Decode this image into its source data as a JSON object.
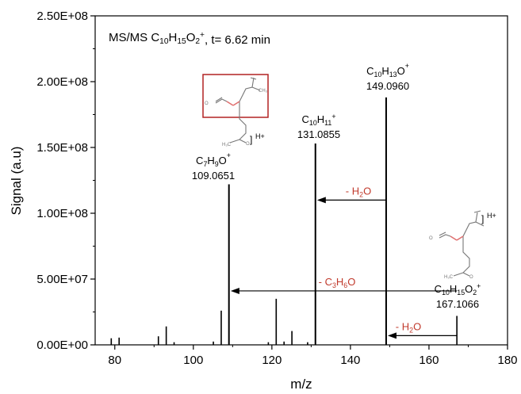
{
  "chart_data": {
    "type": "bar",
    "title": "MS/MS C10H15O2+, t= 6.62 min",
    "title_parts": {
      "prefix": "MS/MS C",
      "c": "10",
      "h": "H",
      "hn": "15",
      "o": "O",
      "on": "2",
      "charge": "+",
      "suffix": ", t= 6.62 min"
    },
    "xlabel": "m/z",
    "ylabel": "Signal (a.u)",
    "xlim": [
      75,
      180
    ],
    "ylim": [
      0,
      250000000
    ],
    "xticks": [
      80,
      100,
      120,
      140,
      160,
      180
    ],
    "yticks": [
      0,
      50000000,
      100000000,
      150000000,
      200000000,
      250000000
    ],
    "ytick_labels": [
      "0.00E+00",
      "5.00E+07",
      "1.00E+08",
      "1.50E+08",
      "2.00E+08",
      "2.50E+08"
    ],
    "peaks": [
      {
        "mz": 79.1,
        "value": 5000000
      },
      {
        "mz": 81.1,
        "value": 5500000
      },
      {
        "mz": 91.1,
        "value": 6500000
      },
      {
        "mz": 93.1,
        "value": 14000000
      },
      {
        "mz": 95.1,
        "value": 2000000
      },
      {
        "mz": 105.1,
        "value": 2500000
      },
      {
        "mz": 107.1,
        "value": 26000000
      },
      {
        "mz": 109.0651,
        "value": 122000000
      },
      {
        "mz": 119.1,
        "value": 2000000
      },
      {
        "mz": 121.1,
        "value": 35000000
      },
      {
        "mz": 123.1,
        "value": 2500000
      },
      {
        "mz": 125.1,
        "value": 10500000
      },
      {
        "mz": 129.1,
        "value": 2000000
      },
      {
        "mz": 131.0855,
        "value": 153000000
      },
      {
        "mz": 149.096,
        "value": 188000000
      },
      {
        "mz": 167.1066,
        "value": 22000000
      }
    ],
    "peak_labels": [
      {
        "formula": [
          "C",
          "7",
          "H",
          "9",
          "O",
          "+"
        ],
        "mass": "109.0651",
        "mz": 109.0651
      },
      {
        "formula": [
          "C",
          "10",
          "H",
          "11",
          "+"
        ],
        "mass": "131.0855",
        "mz": 131.0855
      },
      {
        "formula": [
          "C",
          "10",
          "H",
          "13",
          "O",
          "+"
        ],
        "mass": "149.0960",
        "mz": 149.096
      },
      {
        "formula": [
          "C",
          "10",
          "H",
          "15",
          "O",
          "2",
          "+"
        ],
        "mass": "167.1066",
        "mz": 167.1066
      }
    ],
    "annotations": [
      {
        "text_parts": [
          "- H",
          "2",
          "O"
        ],
        "from_mz": 149.1,
        "to_mz": 131.1,
        "at_value": 110000000,
        "color": "#c0392b"
      },
      {
        "text_parts": [
          "- C",
          "3",
          "H",
          "6",
          "O"
        ],
        "from_mz": 167.1,
        "to_mz": 109.1,
        "at_value": 41000000,
        "color": "#c0392b"
      },
      {
        "text_parts": [
          "- H",
          "2",
          "O"
        ],
        "from_mz": 167.1,
        "to_mz": 149.1,
        "at_value": 7000000,
        "color": "#c0392b"
      }
    ],
    "structure_labels": {
      "ion": "H+",
      "ch3": "CH₃",
      "o": "O",
      "h3c": "H₃C"
    },
    "colors": {
      "axis": "#000000",
      "peak": "#000000",
      "annotation": "#c0392b",
      "highlight_box": "#b22222"
    }
  }
}
